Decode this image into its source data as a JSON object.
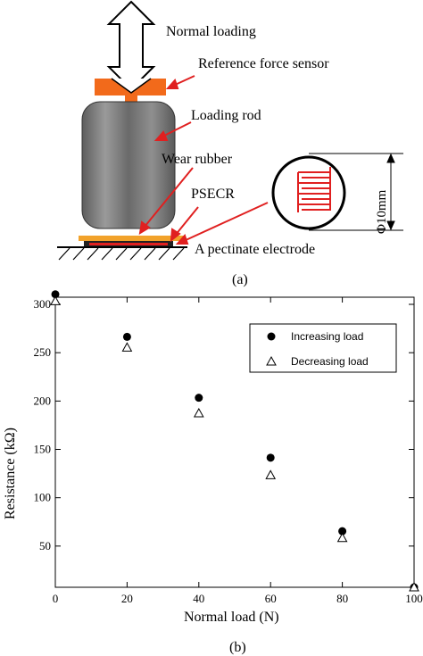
{
  "panel_a": {
    "caption": "(a)",
    "labels": {
      "normal_loading": "Normal loading",
      "reference_force_sensor": "Reference force sensor",
      "loading_rod": "Loading rod",
      "wear_rubber": "Wear rubber",
      "psecr": "PSECR",
      "pectinate_electrode": "A pectinate electrode",
      "diameter": "Φ10mm"
    },
    "colors": {
      "sensor": "#f26a1b",
      "arrow": "#e02020",
      "electrode": "#e02020",
      "rubber": "#f2a22a",
      "rod": "#7d7d7d"
    }
  },
  "panel_b": {
    "caption": "(b)"
  },
  "chart_data": {
    "type": "scatter",
    "xlabel": "Normal load (N)",
    "ylabel": "Resistance (kΩ)",
    "xlim": [
      0,
      100
    ],
    "ylim": [
      0,
      300
    ],
    "xticks": [
      0,
      20,
      40,
      60,
      80,
      100
    ],
    "yticks": [
      50,
      100,
      150,
      200,
      250,
      300
    ],
    "legend_position": "top-right",
    "series": [
      {
        "name": "Increasing load",
        "marker": "filled-circle",
        "x": [
          0,
          20,
          40,
          60,
          80,
          100
        ],
        "y": [
          303,
          259,
          196,
          134,
          58,
          0
        ]
      },
      {
        "name": "Decreasing load",
        "marker": "open-triangle",
        "x": [
          0,
          20,
          40,
          60,
          80,
          100
        ],
        "y": [
          296,
          248,
          180,
          116,
          51,
          0
        ]
      }
    ]
  }
}
